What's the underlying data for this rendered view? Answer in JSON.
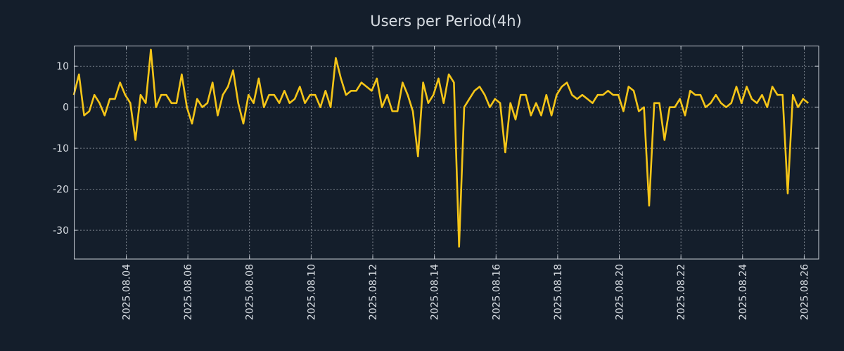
{
  "chart_data": {
    "type": "line",
    "title": "Users per Period(4h)",
    "xlabel": "",
    "ylabel": "",
    "interval_hours": 4,
    "x_start_days": 0.0,
    "x_range_days": [
      0,
      24.17
    ],
    "ylim": [
      -37,
      15
    ],
    "y_ticks": [
      10,
      0,
      -10,
      -20,
      -30
    ],
    "x_ticks": [
      {
        "day": 1.7,
        "label": "2025.08.04"
      },
      {
        "day": 3.7,
        "label": "2025.08.06"
      },
      {
        "day": 5.7,
        "label": "2025.08.08"
      },
      {
        "day": 7.7,
        "label": "2025.08.10"
      },
      {
        "day": 9.7,
        "label": "2025.08.12"
      },
      {
        "day": 11.7,
        "label": "2025.08.14"
      },
      {
        "day": 13.7,
        "label": "2025.08.16"
      },
      {
        "day": 15.7,
        "label": "2025.08.18"
      },
      {
        "day": 17.7,
        "label": "2025.08.20"
      },
      {
        "day": 19.7,
        "label": "2025.08.22"
      },
      {
        "day": 21.7,
        "label": "2025.08.24"
      },
      {
        "day": 23.7,
        "label": "2025.08.26"
      }
    ],
    "grid": true,
    "series": [
      {
        "name": "users",
        "color": "#f5c518",
        "values": [
          3,
          8,
          -2,
          -1,
          3,
          1,
          -2,
          2,
          2,
          6,
          3,
          1,
          -8,
          3,
          1,
          14,
          0,
          3,
          3,
          1,
          1,
          8,
          0,
          -4,
          2,
          0,
          1,
          6,
          -2,
          3,
          5,
          9,
          1,
          -4,
          3,
          1,
          7,
          0,
          3,
          3,
          1,
          4,
          1,
          2,
          5,
          1,
          3,
          3,
          0,
          4,
          0,
          12,
          7,
          3,
          4,
          4,
          6,
          5,
          4,
          7,
          0,
          3,
          -1,
          -1,
          6,
          3,
          -1,
          -12,
          6,
          1,
          3,
          7,
          1,
          8,
          6,
          -34,
          0,
          2,
          4,
          5,
          3,
          0,
          2,
          1,
          -11,
          1,
          -3,
          3,
          3,
          -2,
          1,
          -2,
          3,
          -2,
          3,
          5,
          6,
          3,
          2,
          3,
          2,
          1,
          3,
          3,
          4,
          3,
          3,
          -1,
          5,
          4,
          -1,
          0,
          -24,
          1,
          1,
          -8,
          0,
          0,
          2,
          -2,
          4,
          3,
          3,
          0,
          1,
          3,
          1,
          0,
          1,
          5,
          1,
          5,
          2,
          1,
          3,
          0,
          5,
          3,
          3,
          -21,
          3,
          0,
          2,
          1
        ]
      }
    ]
  }
}
